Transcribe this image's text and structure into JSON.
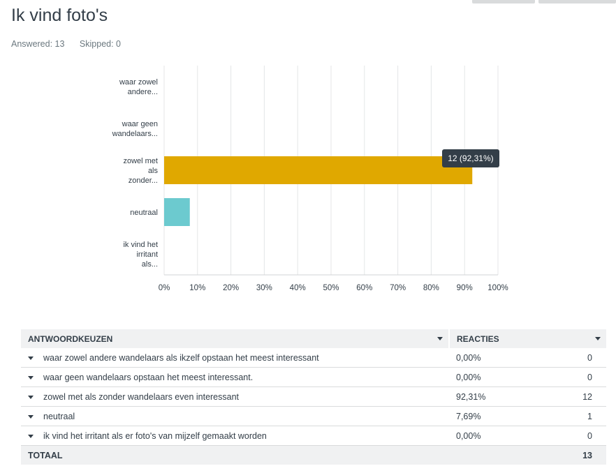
{
  "question": {
    "title": "Ik vind foto's",
    "answered": "Answered: 13",
    "skipped": "Skipped: 0"
  },
  "chart_data": {
    "type": "bar",
    "orientation": "horizontal",
    "categories": [
      "waar zowel andere...",
      "waar geen wandelaars...",
      "zowel met als zonder...",
      "neutraal",
      "ik vind het irritant als..."
    ],
    "values": [
      0,
      0,
      92.31,
      7.69,
      0
    ],
    "bar_colors": [
      "#e0a800",
      "#e0a800",
      "#e0a800",
      "#6ccacf",
      "#e0a800"
    ],
    "xlim": [
      0,
      100
    ],
    "x_ticks": [
      "0%",
      "10%",
      "20%",
      "30%",
      "40%",
      "50%",
      "60%",
      "70%",
      "80%",
      "90%",
      "100%"
    ],
    "grid": true,
    "tooltip": {
      "category_index": 2,
      "text": "12 (92,31%)"
    }
  },
  "table": {
    "headers": {
      "choices": "ANTWOORDKEUZEN",
      "responses": "REACTIES"
    },
    "rows": [
      {
        "label": "waar zowel andere wandelaars als ikzelf opstaan het meest interessant",
        "percent": "0,00%",
        "count": "0"
      },
      {
        "label": "waar geen wandelaars opstaan het meest interessant.",
        "percent": "0,00%",
        "count": "0"
      },
      {
        "label": "zowel met als zonder wandelaars even interessant",
        "percent": "92,31%",
        "count": "12"
      },
      {
        "label": "neutraal",
        "percent": "7,69%",
        "count": "1"
      },
      {
        "label": "ik vind het irritant als er foto's van mijzelf  gemaakt worden",
        "percent": "0,00%",
        "count": "0"
      }
    ],
    "total": {
      "label": "TOTAAL",
      "count": "13"
    }
  }
}
